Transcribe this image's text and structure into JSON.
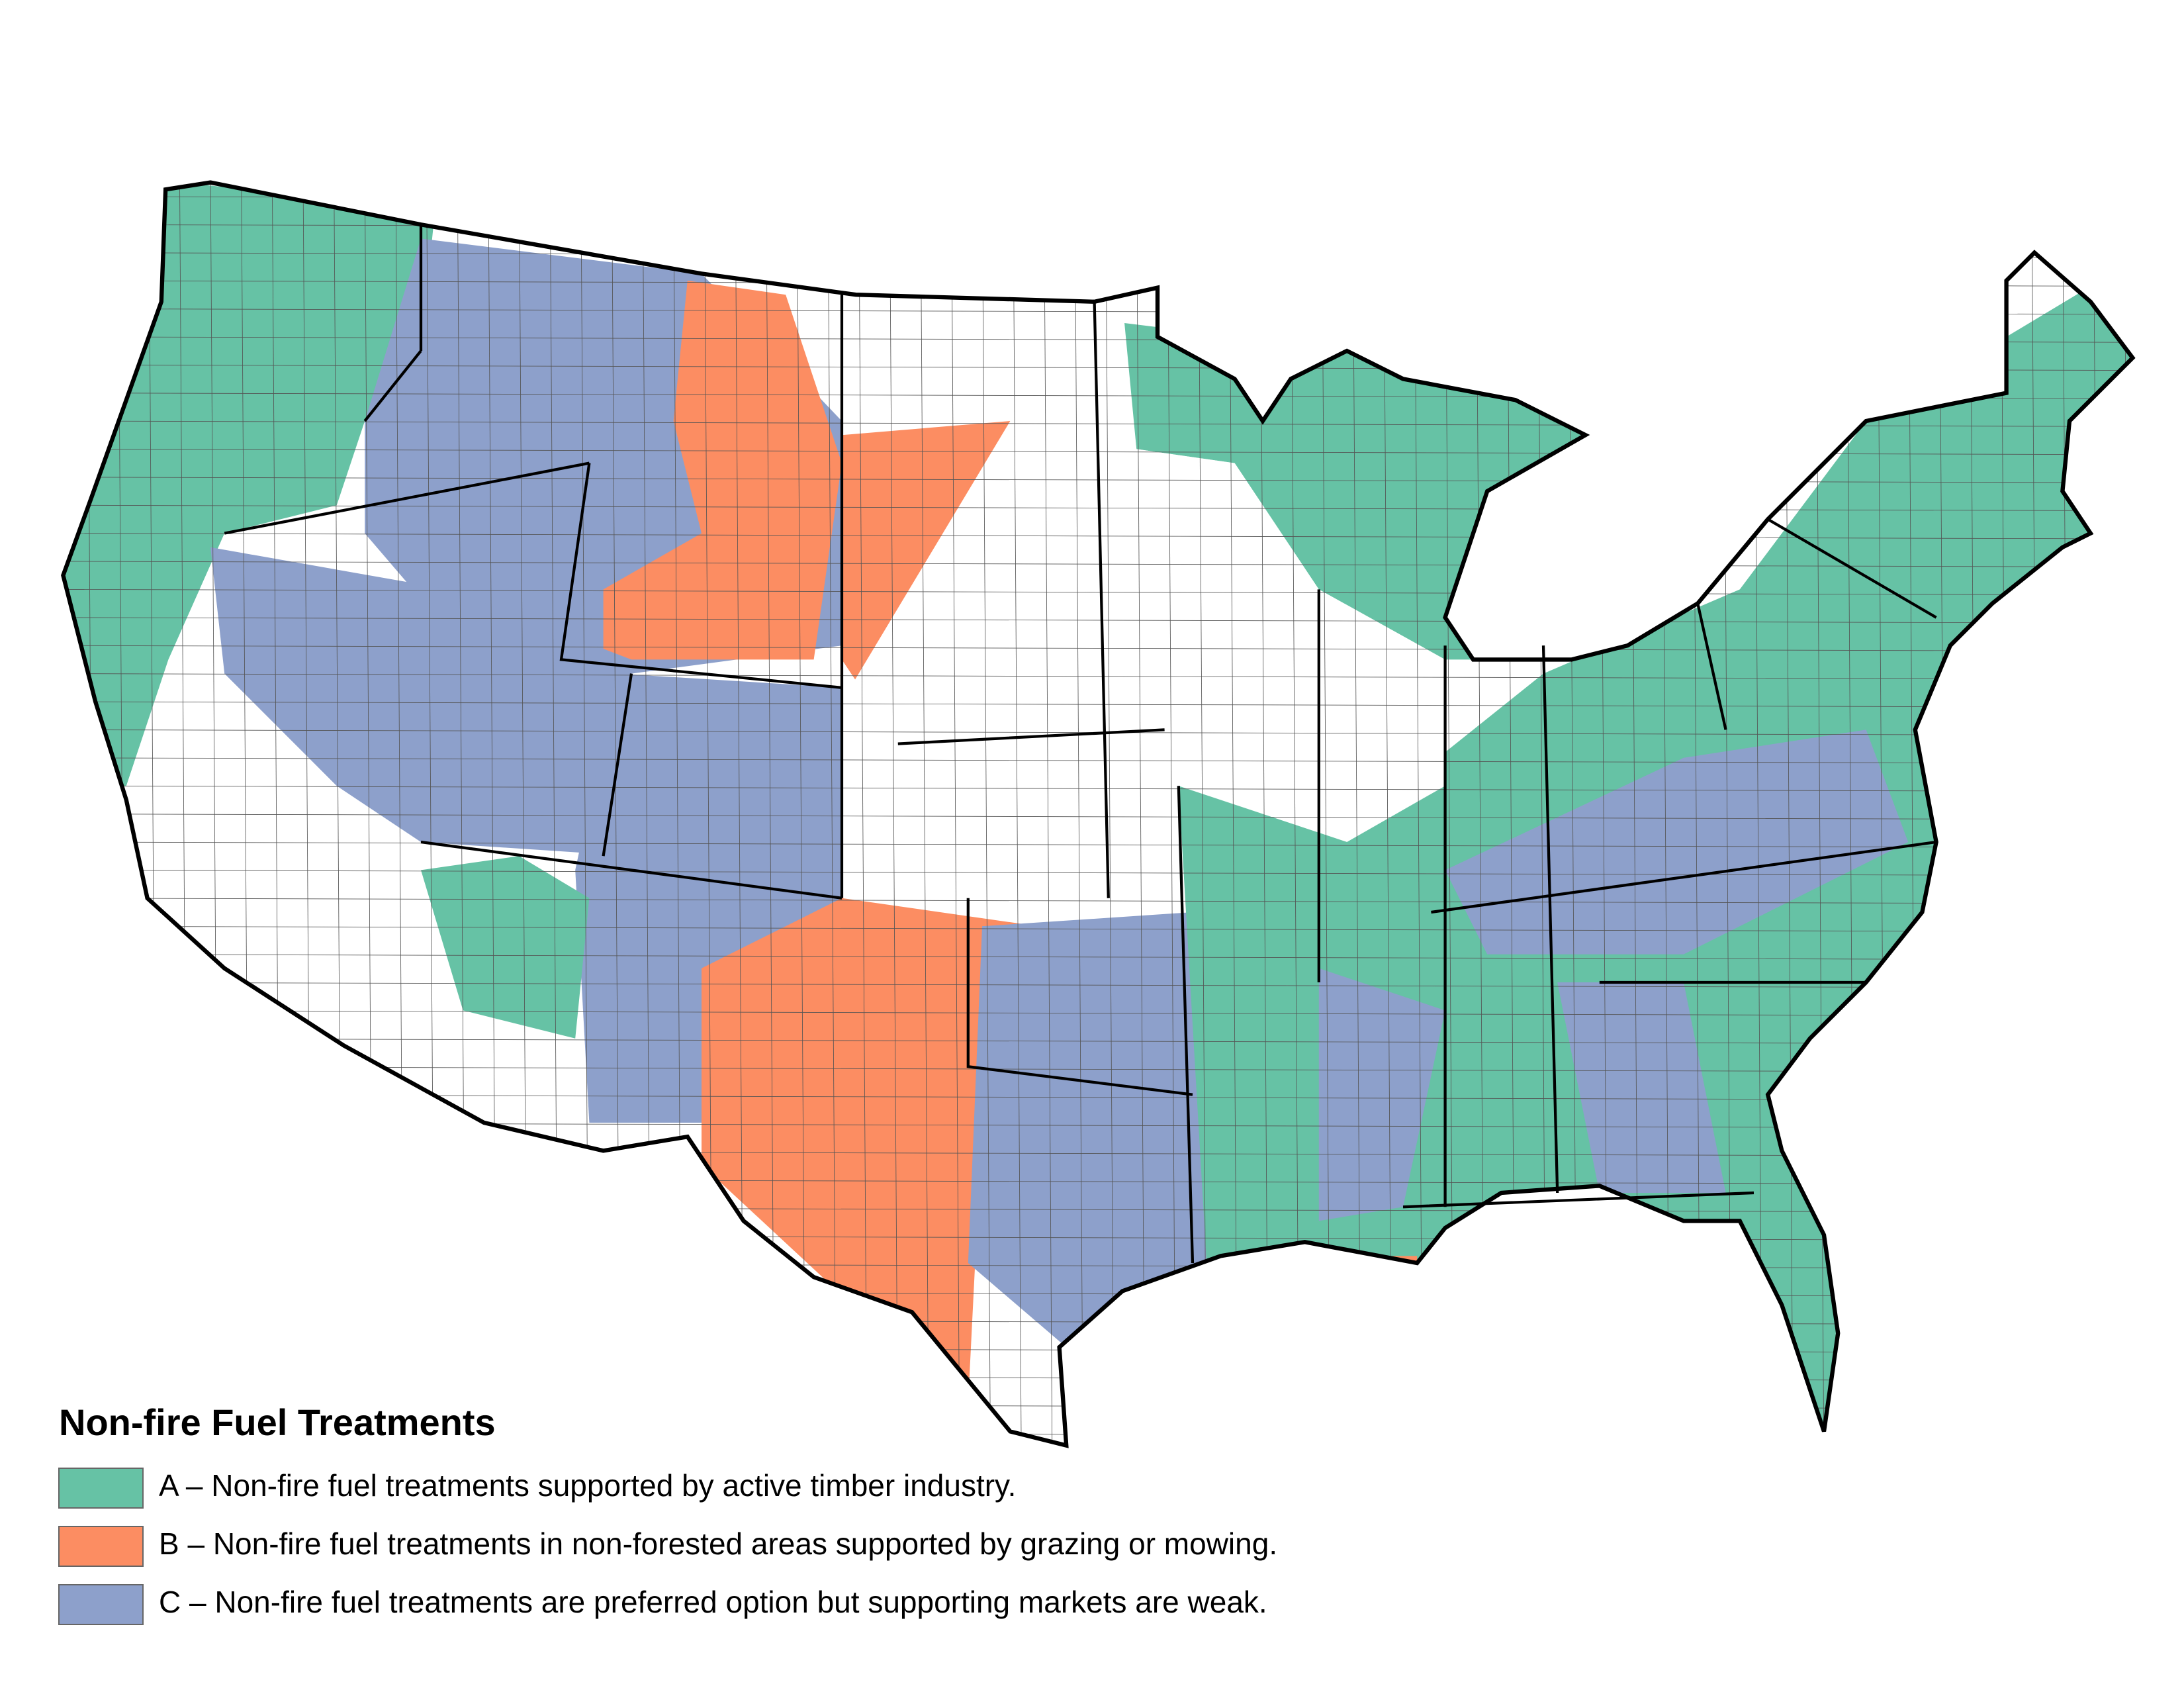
{
  "legend": {
    "title": "Non-fire Fuel Treatments",
    "items": [
      {
        "label": "A – Non-fire fuel treatments supported by active timber industry.",
        "color": "#66c2a5"
      },
      {
        "label": "B – Non-fire fuel treatments in non-forested areas supported by grazing or mowing.",
        "color": "#fc8d62"
      },
      {
        "label": "C – Non-fire fuel treatments are preferred option but supporting markets are weak.",
        "color": "#8da0cb"
      }
    ]
  }
}
